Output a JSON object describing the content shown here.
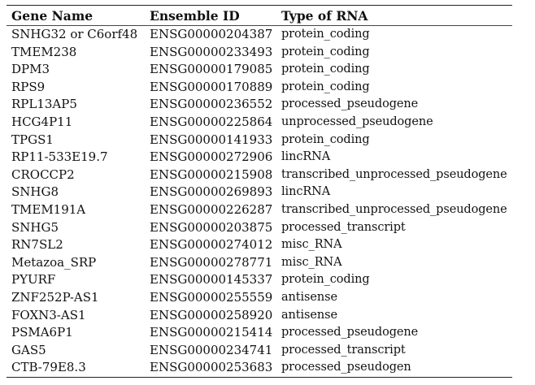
{
  "table": {
    "headers": [
      "Gene Name",
      "Ensemble ID",
      "Type of RNA"
    ],
    "rows": [
      [
        "SNHG32 or C6orf48",
        "ENSG00000204387",
        "protein_coding"
      ],
      [
        "TMEM238",
        "ENSG00000233493",
        "protein_coding"
      ],
      [
        "DPM3",
        "ENSG00000179085",
        "protein_coding"
      ],
      [
        "RPS9",
        "ENSG00000170889",
        "protein_coding"
      ],
      [
        "RPL13AP5",
        "ENSG00000236552",
        "processed_pseudogene"
      ],
      [
        "HCG4P11",
        "ENSG00000225864",
        "unprocessed_pseudogene"
      ],
      [
        "TPGS1",
        "ENSG00000141933",
        "protein_coding"
      ],
      [
        "RP11-533E19.7",
        "ENSG00000272906",
        "lincRNA"
      ],
      [
        "CROCCP2",
        "ENSG00000215908",
        "transcribed_unprocessed_pseudogene"
      ],
      [
        "SNHG8",
        "ENSG00000269893",
        "lincRNA"
      ],
      [
        "TMEM191A",
        "ENSG00000226287",
        "transcribed_unprocessed_pseudogene"
      ],
      [
        "SNHG5",
        "ENSG00000203875",
        "processed_transcript"
      ],
      [
        "RN7SL2",
        "ENSG00000274012",
        "misc_RNA"
      ],
      [
        "Metazoa_SRP",
        "ENSG00000278771",
        "misc_RNA"
      ],
      [
        "PYURF",
        "ENSG00000145337",
        "protein_coding"
      ],
      [
        "ZNF252P-AS1",
        "ENSG00000255559",
        "antisense"
      ],
      [
        "FOXN3-AS1",
        "ENSG00000258920",
        "antisense"
      ],
      [
        "PSMA6P1",
        "ENSG00000215414",
        "processed_pseudogene"
      ],
      [
        "GAS5",
        "ENSG00000234741",
        "processed_transcript"
      ],
      [
        "CTB-79E8.3",
        "ENSG00000253683",
        "processed_pseudogen"
      ]
    ]
  }
}
